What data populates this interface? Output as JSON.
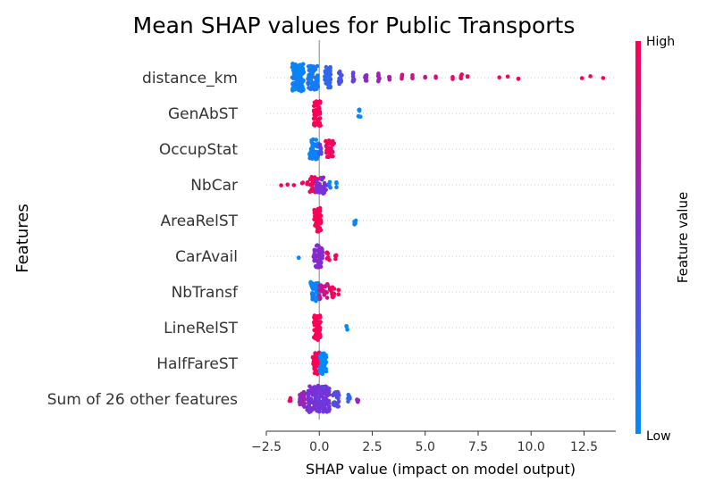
{
  "chart_data": {
    "type": "scatter",
    "subtype": "beeswarm",
    "title": "Mean SHAP values for Public Transports",
    "xlabel": "SHAP value (impact on model output)",
    "ylabel": "Features",
    "xlim": [
      -2.5,
      14
    ],
    "xticks": [
      -2.5,
      0.0,
      2.5,
      5.0,
      7.5,
      10.0,
      12.5
    ],
    "xtick_labels": [
      "−2.5",
      "0.0",
      "2.5",
      "5.0",
      "7.5",
      "10.0",
      "12.5"
    ],
    "colorbar": {
      "label": "Feature value",
      "high_label": "High",
      "low_label": "Low",
      "low_color": "#008bfb",
      "high_color": "#ff0052"
    },
    "zero_line_color": "#999999",
    "grid": "dotted rows",
    "features": [
      {
        "name": "distance_km",
        "points": [
          {
            "x": -1.0,
            "v": 0.05,
            "n": 120,
            "spread": 0.28
          },
          {
            "x": -0.3,
            "v": 0.1,
            "n": 60,
            "spread": 0.24
          },
          {
            "x": 0.4,
            "v": 0.2,
            "n": 45,
            "spread": 0.14
          },
          {
            "x": 1.0,
            "v": 0.3,
            "n": 18,
            "spread": 0.08
          },
          {
            "x": 1.6,
            "v": 0.4,
            "n": 10,
            "spread": 0.05
          },
          {
            "x": 2.2,
            "v": 0.55,
            "n": 7,
            "spread": 0.04
          },
          {
            "x": 2.8,
            "v": 0.65,
            "n": 7,
            "spread": 0.04
          },
          {
            "x": 3.3,
            "v": 0.7,
            "n": 4,
            "spread": 0.02
          },
          {
            "x": 3.9,
            "v": 0.8,
            "n": 4,
            "spread": 0.02
          },
          {
            "x": 4.4,
            "v": 0.82,
            "n": 3,
            "spread": 0.0
          },
          {
            "x": 5.0,
            "v": 0.85,
            "n": 3,
            "spread": 0.0
          },
          {
            "x": 5.5,
            "v": 0.88,
            "n": 2,
            "spread": 0.0
          },
          {
            "x": 6.3,
            "v": 0.9,
            "n": 2,
            "spread": 0.0
          },
          {
            "x": 6.7,
            "v": 0.92,
            "n": 4,
            "spread": 0.03
          },
          {
            "x": 7.0,
            "v": 0.95,
            "n": 2,
            "spread": 0.0
          },
          {
            "x": 8.5,
            "v": 0.93,
            "n": 1,
            "spread": 0.0
          },
          {
            "x": 8.9,
            "v": 0.95,
            "n": 1,
            "spread": 0.0
          },
          {
            "x": 9.4,
            "v": 0.97,
            "n": 2,
            "spread": 0.0
          },
          {
            "x": 12.4,
            "v": 0.98,
            "n": 1,
            "spread": 0.0
          },
          {
            "x": 12.8,
            "v": 0.98,
            "n": 1,
            "spread": 0.0
          },
          {
            "x": 13.4,
            "v": 1.0,
            "n": 1,
            "spread": 0.0
          }
        ]
      },
      {
        "name": "GenAbST",
        "points": [
          {
            "x": -0.1,
            "v": 1.0,
            "n": 60,
            "spread": 0.16
          },
          {
            "x": 1.9,
            "v": 0.0,
            "n": 6,
            "spread": 0.06
          }
        ]
      },
      {
        "name": "OccupStat",
        "points": [
          {
            "x": -0.25,
            "v": 0.05,
            "n": 40,
            "spread": 0.22
          },
          {
            "x": 0.05,
            "v": 0.4,
            "n": 10,
            "spread": 0.06
          },
          {
            "x": 0.5,
            "v": 0.95,
            "n": 30,
            "spread": 0.2
          }
        ]
      },
      {
        "name": "NbCar",
        "points": [
          {
            "x": -1.8,
            "v": 1.0,
            "n": 1,
            "spread": 0.0
          },
          {
            "x": -1.5,
            "v": 1.0,
            "n": 1,
            "spread": 0.0
          },
          {
            "x": -1.2,
            "v": 1.0,
            "n": 1,
            "spread": 0.0
          },
          {
            "x": -0.8,
            "v": 0.95,
            "n": 2,
            "spread": 0.04
          },
          {
            "x": -0.6,
            "v": 0.95,
            "n": 3,
            "spread": 0.06
          },
          {
            "x": -0.25,
            "v": 0.95,
            "n": 25,
            "spread": 0.24
          },
          {
            "x": 0.1,
            "v": 0.5,
            "n": 30,
            "spread": 0.24
          },
          {
            "x": 0.5,
            "v": 0.1,
            "n": 4,
            "spread": 0.06
          },
          {
            "x": 0.8,
            "v": 0.05,
            "n": 3,
            "spread": 0.06
          }
        ]
      },
      {
        "name": "AreaRelST",
        "points": [
          {
            "x": -0.08,
            "v": 1.0,
            "n": 60,
            "spread": 0.16
          },
          {
            "x": 1.7,
            "v": 0.0,
            "n": 6,
            "spread": 0.05
          }
        ]
      },
      {
        "name": "CarAvail",
        "points": [
          {
            "x": -0.95,
            "v": 0.05,
            "n": 2,
            "spread": 0.04
          },
          {
            "x": -0.05,
            "v": 0.55,
            "n": 50,
            "spread": 0.22
          },
          {
            "x": 0.4,
            "v": 0.95,
            "n": 6,
            "spread": 0.08
          },
          {
            "x": 0.75,
            "v": 0.95,
            "n": 4,
            "spread": 0.06
          }
        ]
      },
      {
        "name": "NbTransf",
        "points": [
          {
            "x": -0.2,
            "v": 0.05,
            "n": 40,
            "spread": 0.22
          },
          {
            "x": 0.2,
            "v": 0.8,
            "n": 25,
            "spread": 0.2
          },
          {
            "x": 0.6,
            "v": 0.95,
            "n": 12,
            "spread": 0.12
          },
          {
            "x": 0.9,
            "v": 1.0,
            "n": 3,
            "spread": 0.02
          }
        ]
      },
      {
        "name": "LineRelST",
        "points": [
          {
            "x": -0.1,
            "v": 1.0,
            "n": 60,
            "spread": 0.16
          },
          {
            "x": 1.3,
            "v": 0.0,
            "n": 3,
            "spread": 0.03
          }
        ]
      },
      {
        "name": "HalfFareST",
        "points": [
          {
            "x": -0.15,
            "v": 1.0,
            "n": 45,
            "spread": 0.16
          },
          {
            "x": 0.18,
            "v": 0.0,
            "n": 45,
            "spread": 0.16
          }
        ]
      },
      {
        "name": "Sum of 26 other features",
        "points": [
          {
            "x": -1.4,
            "v": 0.9,
            "n": 3,
            "spread": 0.06
          },
          {
            "x": -0.8,
            "v": 0.6,
            "n": 25,
            "spread": 0.14
          },
          {
            "x": -0.3,
            "v": 0.5,
            "n": 70,
            "spread": 0.28
          },
          {
            "x": 0.2,
            "v": 0.45,
            "n": 70,
            "spread": 0.28
          },
          {
            "x": 0.8,
            "v": 0.35,
            "n": 25,
            "spread": 0.16
          },
          {
            "x": 1.4,
            "v": 0.2,
            "n": 8,
            "spread": 0.06
          },
          {
            "x": 1.8,
            "v": 0.6,
            "n": 4,
            "spread": 0.04
          }
        ]
      }
    ]
  }
}
